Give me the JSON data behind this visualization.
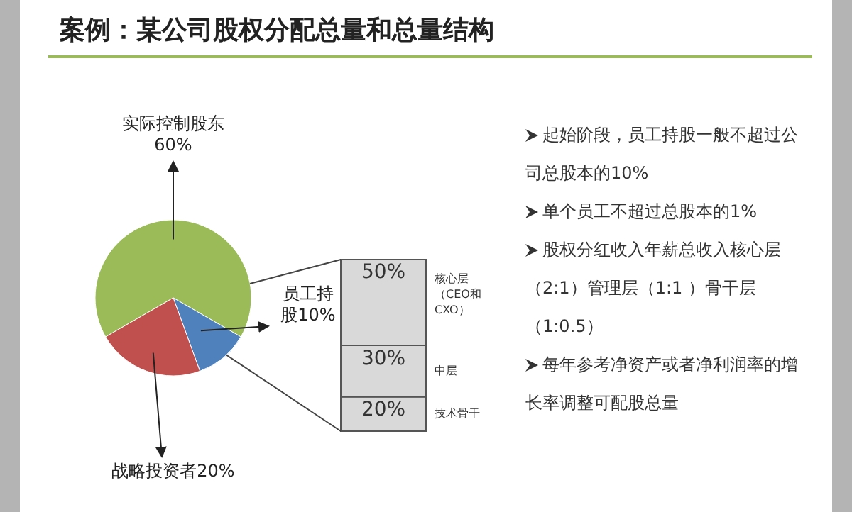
{
  "chart_data": [
    {
      "type": "pie",
      "title": "案例：某公司股权分配总量和总量结构",
      "categories": [
        "实际控制股东",
        "员工持股",
        "战略投资者"
      ],
      "values": [
        60,
        10,
        20
      ],
      "value_labels": [
        "60%",
        "10%",
        "20%"
      ],
      "colors": [
        "#9bbb59",
        "#4f81bd",
        "#c0504d"
      ]
    },
    {
      "type": "bar",
      "stacked": true,
      "categories": [
        null
      ],
      "series": [
        {
          "name": "技术骨干",
          "color": "#d9d9d9",
          "values": [
            20
          ],
          "value_labels": [
            "20%"
          ]
        },
        {
          "name": "中层",
          "color": "#d9d9d9",
          "values": [
            30
          ],
          "value_labels": [
            "30%"
          ]
        },
        {
          "name": "核心层（CEO和CXO）",
          "color": "#d9d9d9",
          "values": [
            50
          ],
          "value_labels": [
            "50%"
          ]
        }
      ]
    },
    {
      "type": "other",
      "annotations": [
        "起始阶段，员工持股一般不超过公司总股本的10%",
        "单个员工不超过总股本的1%",
        "股权分红收入年薪总收入核心层（2:1）管理层（1:1 ）骨干层（1:0.5）",
        "每年参考净资产或者净利润率的增长率调整可配股总量"
      ]
    }
  ]
}
